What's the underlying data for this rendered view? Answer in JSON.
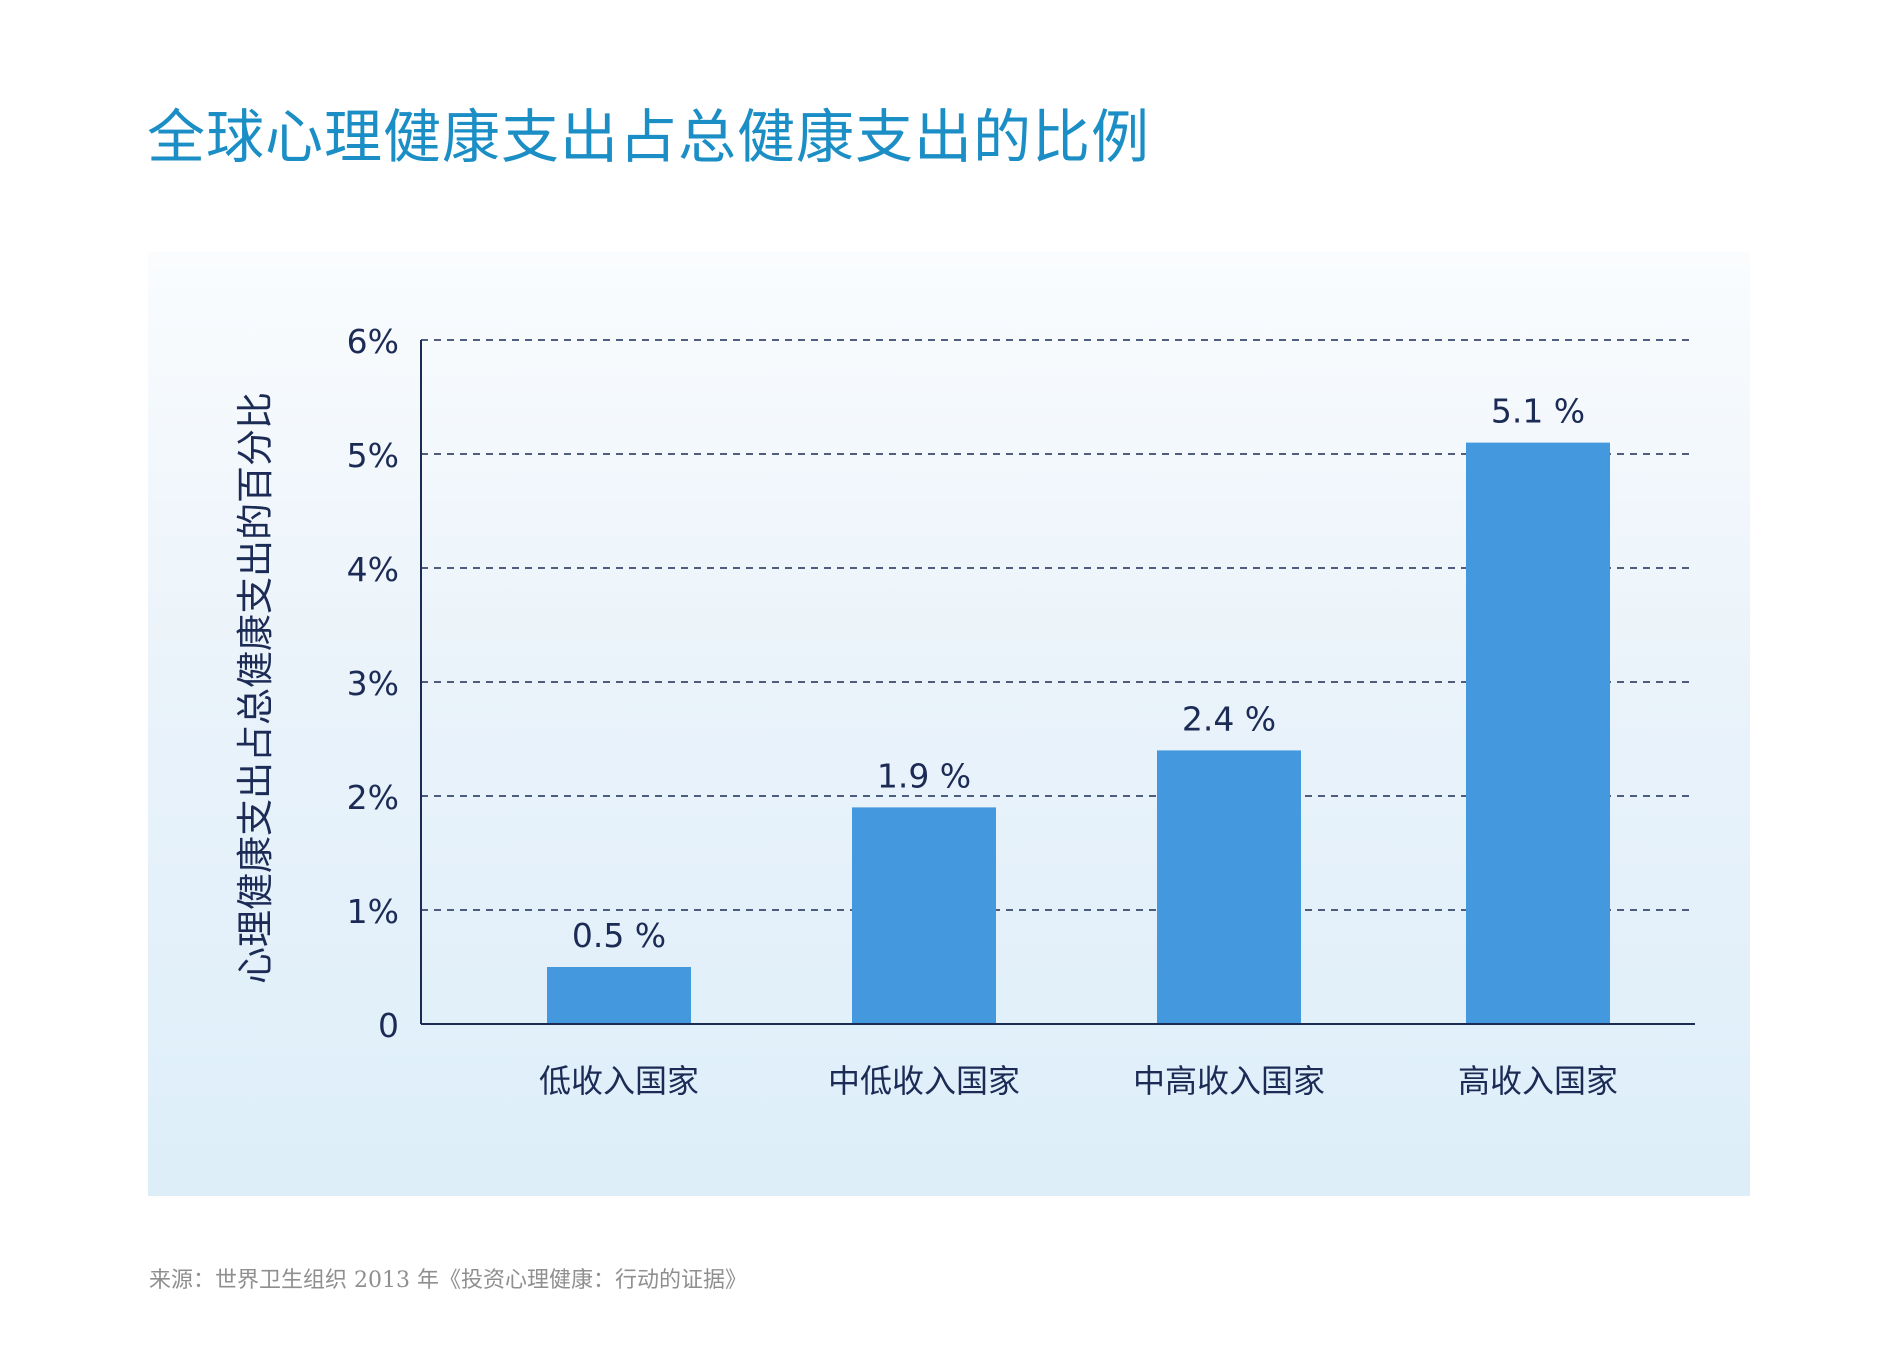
{
  "page": {
    "title": "全球心理健康支出占总健康支出的比例",
    "source": "来源：世界卫生组织 2013 年《投资心理健康：行动的证据》"
  },
  "colors": {
    "title": "#1a8ec5",
    "bar": "#4498dd",
    "axis_text": "#1c2b55",
    "gridline": "#1c2b55",
    "panel_top": "#fafcfe",
    "panel_bottom": "#ddeef9",
    "source": "#8f8f8f"
  },
  "chart_data": {
    "type": "bar",
    "title": "",
    "xlabel": "",
    "ylabel": "心理健康支出占总健康支出的百分比",
    "categories": [
      "低收入国家",
      "中低收入国家",
      "中高收入国家",
      "高收入国家"
    ],
    "values": [
      0.5,
      1.9,
      2.4,
      5.1
    ],
    "value_labels": [
      "0.5 %",
      "1.9 %",
      "2.4 %",
      "5.1 %"
    ],
    "ylim": [
      0,
      6
    ],
    "yticks": [
      0,
      1,
      2,
      3,
      4,
      5,
      6
    ],
    "ytick_labels": [
      "0",
      "1%",
      "2%",
      "3%",
      "4%",
      "5%",
      "6%"
    ],
    "grid": "horizontal dashed",
    "legend": "none"
  }
}
